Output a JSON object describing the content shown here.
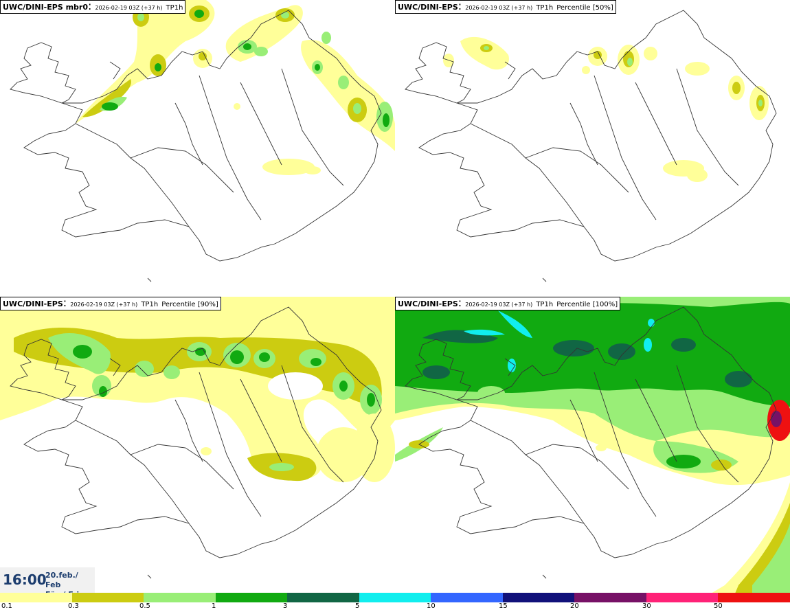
{
  "panels": [
    {
      "model": "UWC/DINI-EPS mbr0",
      "run": "2026-02-19 03Z (+37 h)",
      "field": "TP1h",
      "percentile": ""
    },
    {
      "model": "UWC/DINI-EPS",
      "run": "2026-02-19 03Z (+37 h)",
      "field": "TP1h",
      "percentile": "Percentile [50%]"
    },
    {
      "model": "UWC/DINI-EPS",
      "run": "2026-02-19 03Z (+37 h)",
      "field": "TP1h",
      "percentile": "Percentile [90%]"
    },
    {
      "model": "UWC/DINI-EPS",
      "run": "2026-02-19 03Z (+37 h)",
      "field": "TP1h",
      "percentile": "Percentile [100%]"
    }
  ],
  "valid_time": {
    "time": "16:00",
    "date_line1": "20.feb./ Feb",
    "date_line2": "Fös./ Fri"
  },
  "colorbar": {
    "colors": [
      "#ffff99",
      "#cccc11",
      "#99ee77",
      "#11aa11",
      "#116644",
      "#11eeee",
      "#3366ff",
      "#11117a",
      "#771166",
      "#ff2277",
      "#ee1111"
    ],
    "tick_labels": [
      "0.1",
      "0.3",
      "0.5",
      "1",
      "3",
      "5",
      "10",
      "15",
      "20",
      "30",
      "50"
    ]
  }
}
